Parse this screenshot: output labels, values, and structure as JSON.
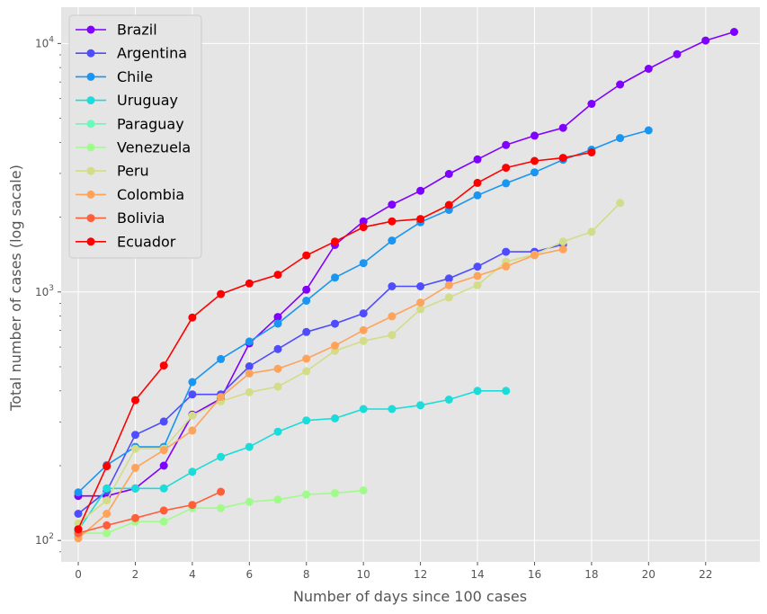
{
  "chart_data": {
    "type": "line",
    "xlabel": "Number of days since 100 cases",
    "ylabel": "Total number of cases  (log sacale)",
    "xlim": [
      -0.6,
      23.9
    ],
    "ylim": [
      82,
      14000
    ],
    "yscale": "log",
    "grid": true,
    "legend_position": "top-left",
    "xticks": [
      0,
      2,
      4,
      6,
      8,
      10,
      12,
      14,
      16,
      18,
      20,
      22
    ],
    "xtick_labels": [
      "0",
      "2",
      "4",
      "6",
      "8",
      "10",
      "12",
      "14",
      "16",
      "18",
      "20",
      "22"
    ],
    "yticks": [
      100,
      1000,
      10000
    ],
    "ytick_labels": [
      "10",
      "10",
      "10"
    ],
    "ytick_exponents": [
      "2",
      "3",
      "4"
    ],
    "series": [
      {
        "name": "Brazil",
        "color": "#8000ff",
        "x": [
          0,
          1,
          2,
          3,
          4,
          5,
          6,
          7,
          8,
          9,
          10,
          11,
          12,
          13,
          14,
          15,
          16,
          17,
          18,
          19,
          20,
          21,
          22,
          23
        ],
        "y": [
          151,
          151,
          162,
          200,
          321,
          372,
          621,
          793,
          1021,
          1546,
          1924,
          2247,
          2554,
          2985,
          3417,
          3904,
          4256,
          4579,
          5717,
          6836,
          7910,
          9056,
          10278,
          11130
        ]
      },
      {
        "name": "Argentina",
        "color": "#4f4cfd",
        "x": [
          0,
          1,
          2,
          3,
          4,
          5,
          6,
          7,
          8,
          9,
          10,
          11,
          12,
          13,
          14,
          15,
          16,
          17
        ],
        "y": [
          128,
          158,
          266,
          301,
          387,
          387,
          502,
          589,
          690,
          745,
          820,
          1054,
          1054,
          1133,
          1265,
          1451,
          1451,
          1554
        ]
      },
      {
        "name": "Chile",
        "color": "#1995f2",
        "x": [
          0,
          1,
          2,
          3,
          4,
          5,
          6,
          7,
          8,
          9,
          10,
          11,
          12,
          13,
          14,
          15,
          16,
          17,
          18,
          19,
          20
        ],
        "y": [
          156,
          201,
          238,
          238,
          434,
          537,
          632,
          746,
          922,
          1142,
          1306,
          1610,
          1909,
          2139,
          2449,
          2738,
          3031,
          3404,
          3737,
          4161,
          4471
        ]
      },
      {
        "name": "Uruguay",
        "color": "#1cdcd9",
        "x": [
          0,
          1,
          2,
          3,
          4,
          5,
          6,
          7,
          8,
          9,
          10,
          11,
          12,
          13,
          14,
          15
        ],
        "y": [
          110,
          162,
          162,
          162,
          189,
          217,
          238,
          274,
          304,
          310,
          338,
          338,
          350,
          369,
          400,
          400
        ]
      },
      {
        "name": "Paraguay",
        "color": "#66fbba",
        "x": [
          0
        ],
        "y": [
          104
        ]
      },
      {
        "name": "Venezuela",
        "color": "#a0fb8b",
        "x": [
          0,
          1,
          2,
          3,
          4,
          5,
          6,
          7,
          8,
          9,
          10
        ],
        "y": [
          107,
          107,
          119,
          119,
          135,
          135,
          143,
          146,
          153,
          155,
          159
        ]
      },
      {
        "name": "Peru",
        "color": "#d3dc86",
        "x": [
          0,
          1,
          2,
          3,
          4,
          5,
          6,
          7,
          8,
          9,
          10,
          11,
          12,
          13,
          14,
          15,
          16,
          17,
          18,
          19
        ],
        "y": [
          117,
          145,
          234,
          234,
          318,
          363,
          395,
          416,
          480,
          580,
          635,
          671,
          852,
          950,
          1065,
          1323,
          1414,
          1595,
          1746,
          2281
        ]
      },
      {
        "name": "Colombia",
        "color": "#fea35b",
        "x": [
          0,
          1,
          2,
          3,
          4,
          5,
          6,
          7,
          8,
          9,
          10,
          11,
          12,
          13,
          14,
          15,
          16,
          17
        ],
        "y": [
          102,
          128,
          196,
          231,
          277,
          378,
          470,
          491,
          539,
          608,
          702,
          798,
          906,
          1065,
          1161,
          1267,
          1406,
          1485
        ]
      },
      {
        "name": "Bolivia",
        "color": "#ff5e3a",
        "x": [
          0,
          1,
          2,
          3,
          4,
          5
        ],
        "y": [
          107,
          115,
          123,
          132,
          139,
          157
        ]
      },
      {
        "name": "Ecuador",
        "color": "#ff0000",
        "x": [
          0,
          1,
          2,
          3,
          4,
          5,
          6,
          7,
          8,
          9,
          10,
          11,
          12,
          13,
          14,
          15,
          16,
          17,
          18
        ],
        "y": [
          111,
          199,
          367,
          506,
          789,
          981,
          1082,
          1173,
          1403,
          1595,
          1823,
          1924,
          1966,
          2240,
          2748,
          3163,
          3368,
          3465,
          3646
        ]
      }
    ]
  }
}
